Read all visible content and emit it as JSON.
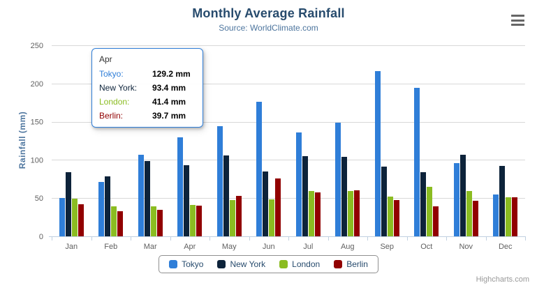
{
  "chart_data": {
    "type": "bar",
    "title": "Monthly Average Rainfall",
    "subtitle": "Source: WorldClimate.com",
    "categories": [
      "Jan",
      "Feb",
      "Mar",
      "Apr",
      "May",
      "Jun",
      "Jul",
      "Aug",
      "Sep",
      "Oct",
      "Nov",
      "Dec"
    ],
    "series": [
      {
        "name": "Tokyo",
        "color": "#2f7ed8",
        "values": [
          49.9,
          71.5,
          106.4,
          129.2,
          144.0,
          176.0,
          135.6,
          148.5,
          216.4,
          194.1,
          95.6,
          54.4
        ]
      },
      {
        "name": "New York",
        "color": "#0d233a",
        "values": [
          83.6,
          78.8,
          98.5,
          93.4,
          106.0,
          84.5,
          105.0,
          104.3,
          91.2,
          83.5,
          106.6,
          92.3
        ]
      },
      {
        "name": "London",
        "color": "#8bbc21",
        "values": [
          48.9,
          38.8,
          39.3,
          41.4,
          47.0,
          48.3,
          59.0,
          59.6,
          52.4,
          65.2,
          59.3,
          51.2
        ]
      },
      {
        "name": "Berlin",
        "color": "#910000",
        "values": [
          42.4,
          33.2,
          34.5,
          39.7,
          52.6,
          75.5,
          57.4,
          60.4,
          47.6,
          39.1,
          46.8,
          51.1
        ]
      }
    ],
    "xlabel": "",
    "ylabel": "Rainfall (mm)",
    "ylim": [
      0,
      250
    ],
    "yticks": [
      0,
      50,
      100,
      150,
      200,
      250
    ],
    "grid": true,
    "legend_position": "bottom"
  },
  "tooltip": {
    "header": "Apr",
    "rows": [
      {
        "label": "Tokyo:",
        "value": "129.2 mm",
        "color": "#2f7ed8"
      },
      {
        "label": "New York:",
        "value": "93.4 mm",
        "color": "#0d233a"
      },
      {
        "label": "London:",
        "value": "41.4 mm",
        "color": "#8bbc21"
      },
      {
        "label": "Berlin:",
        "value": "39.7 mm",
        "color": "#910000"
      }
    ]
  },
  "credits": "Highcharts.com",
  "icons": {
    "menu": "hamburger-icon"
  },
  "colors": {
    "title": "#274b6d",
    "subtitle": "#4d759e",
    "axis_title": "#4d759e",
    "axis_label": "#606060",
    "gridline": "#d8d8d8",
    "axis_line": "#c0d0e0",
    "legend_border": "#909090",
    "legend_text": "#274b6d",
    "credits": "#999999",
    "menu_icon": "#666666",
    "tooltip_border": "#2f7ed8",
    "tooltip_text": "#333333"
  }
}
